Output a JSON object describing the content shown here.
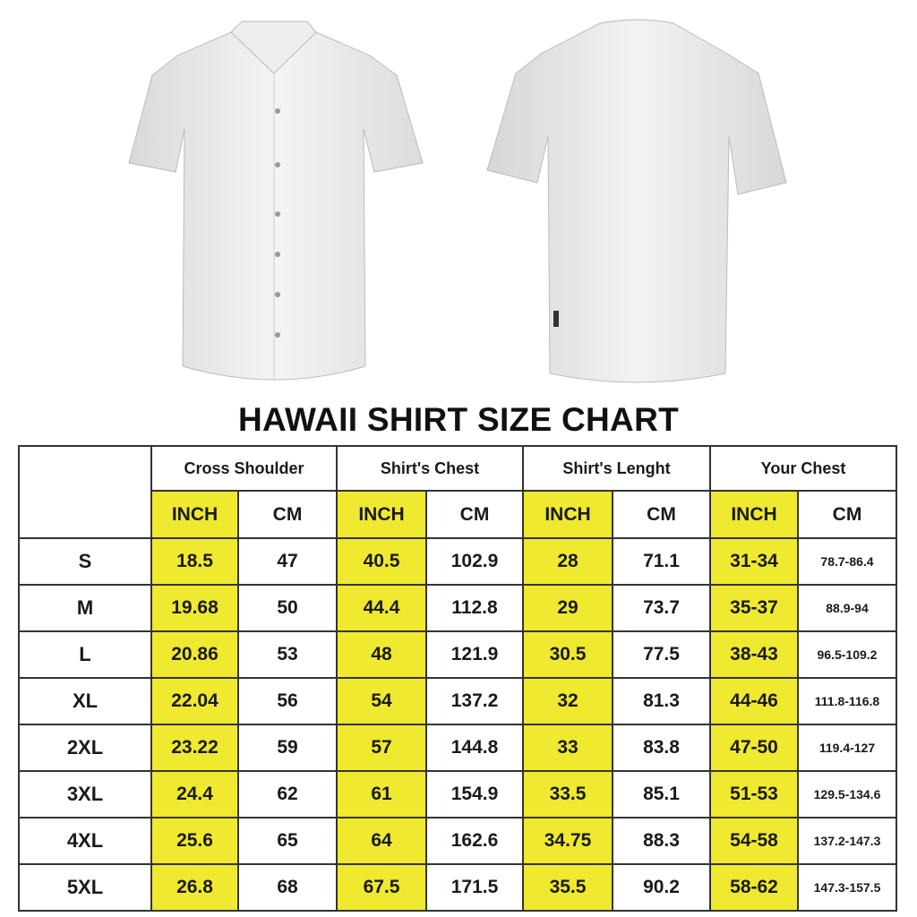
{
  "title": "HAWAII SHIRT SIZE CHART",
  "colors": {
    "highlight": "#efe92f",
    "border": "#333333"
  },
  "images": {
    "front": "shirt-front",
    "back": "shirt-back"
  },
  "groups": [
    "Cross Shoulder",
    "Shirt's Chest",
    "Shirt's Lenght",
    "Your Chest"
  ],
  "units": [
    "INCH",
    "CM"
  ],
  "rows": [
    {
      "size": "S",
      "values": [
        "18.5",
        "47",
        "40.5",
        "102.9",
        "28",
        "71.1",
        "31-34",
        "78.7-86.4"
      ]
    },
    {
      "size": "M",
      "values": [
        "19.68",
        "50",
        "44.4",
        "112.8",
        "29",
        "73.7",
        "35-37",
        "88.9-94"
      ]
    },
    {
      "size": "L",
      "values": [
        "20.86",
        "53",
        "48",
        "121.9",
        "30.5",
        "77.5",
        "38-43",
        "96.5-109.2"
      ]
    },
    {
      "size": "XL",
      "values": [
        "22.04",
        "56",
        "54",
        "137.2",
        "32",
        "81.3",
        "44-46",
        "111.8-116.8"
      ]
    },
    {
      "size": "2XL",
      "values": [
        "23.22",
        "59",
        "57",
        "144.8",
        "33",
        "83.8",
        "47-50",
        "119.4-127"
      ]
    },
    {
      "size": "3XL",
      "values": [
        "24.4",
        "62",
        "61",
        "154.9",
        "33.5",
        "85.1",
        "51-53",
        "129.5-134.6"
      ]
    },
    {
      "size": "4XL",
      "values": [
        "25.6",
        "65",
        "64",
        "162.6",
        "34.75",
        "88.3",
        "54-58",
        "137.2-147.3"
      ]
    },
    {
      "size": "5XL",
      "values": [
        "26.8",
        "68",
        "67.5",
        "171.5",
        "35.5",
        "90.2",
        "58-62",
        "147.3-157.5"
      ]
    }
  ]
}
